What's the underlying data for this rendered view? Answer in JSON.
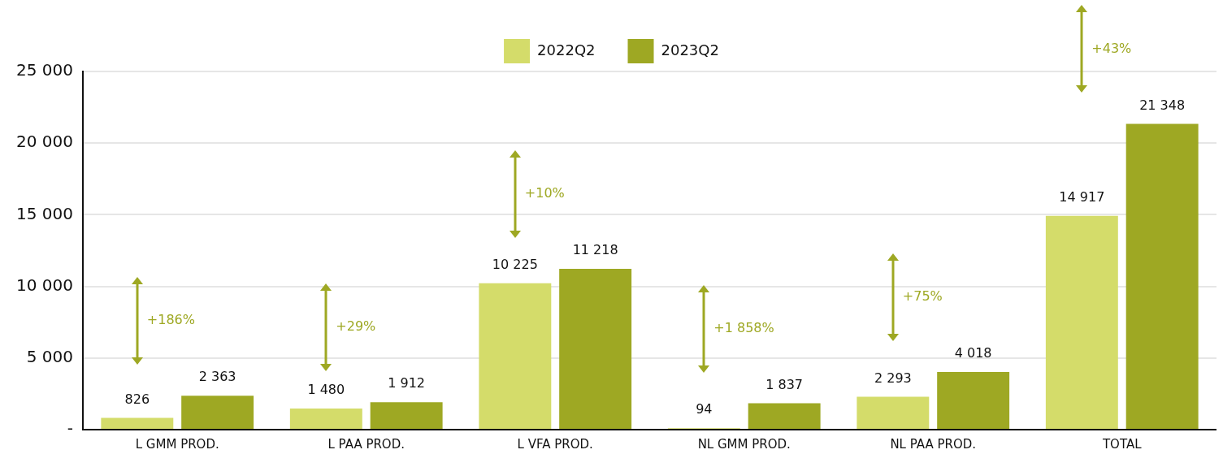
{
  "chart_data": {
    "type": "bar",
    "categories": [
      "L GMM PROD.",
      "L PAA PROD.",
      "L VFA PROD.",
      "NL GMM PROD.",
      "NL PAA PROD.",
      "TOTAL"
    ],
    "series": [
      {
        "name": "2022Q2",
        "color": "#d4dc6a",
        "values": [
          826,
          1480,
          10225,
          94,
          2293,
          14917
        ],
        "value_labels": [
          "826",
          "1 480",
          "10 225",
          "94",
          "2 293",
          "14 917"
        ]
      },
      {
        "name": "2023Q2",
        "color": "#9ea823",
        "values": [
          2363,
          1912,
          11218,
          1837,
          4018,
          21348
        ],
        "value_labels": [
          "2 363",
          "1 912",
          "11 218",
          "1 837",
          "4 018",
          "21 348"
        ]
      }
    ],
    "ylim": [
      0,
      25000
    ],
    "yticks": [
      {
        "value": 0,
        "label": "-"
      },
      {
        "value": 5000,
        "label": "5 000"
      },
      {
        "value": 10000,
        "label": "10 000"
      },
      {
        "value": 15000,
        "label": "15 000"
      },
      {
        "value": 20000,
        "label": "20 000"
      },
      {
        "value": 25000,
        "label": "25 000"
      }
    ],
    "grid": "y",
    "legend": "top",
    "annotations": [
      "+186%",
      "+29%",
      "+10%",
      "+1 858%",
      "+75%",
      "+43%"
    ]
  }
}
